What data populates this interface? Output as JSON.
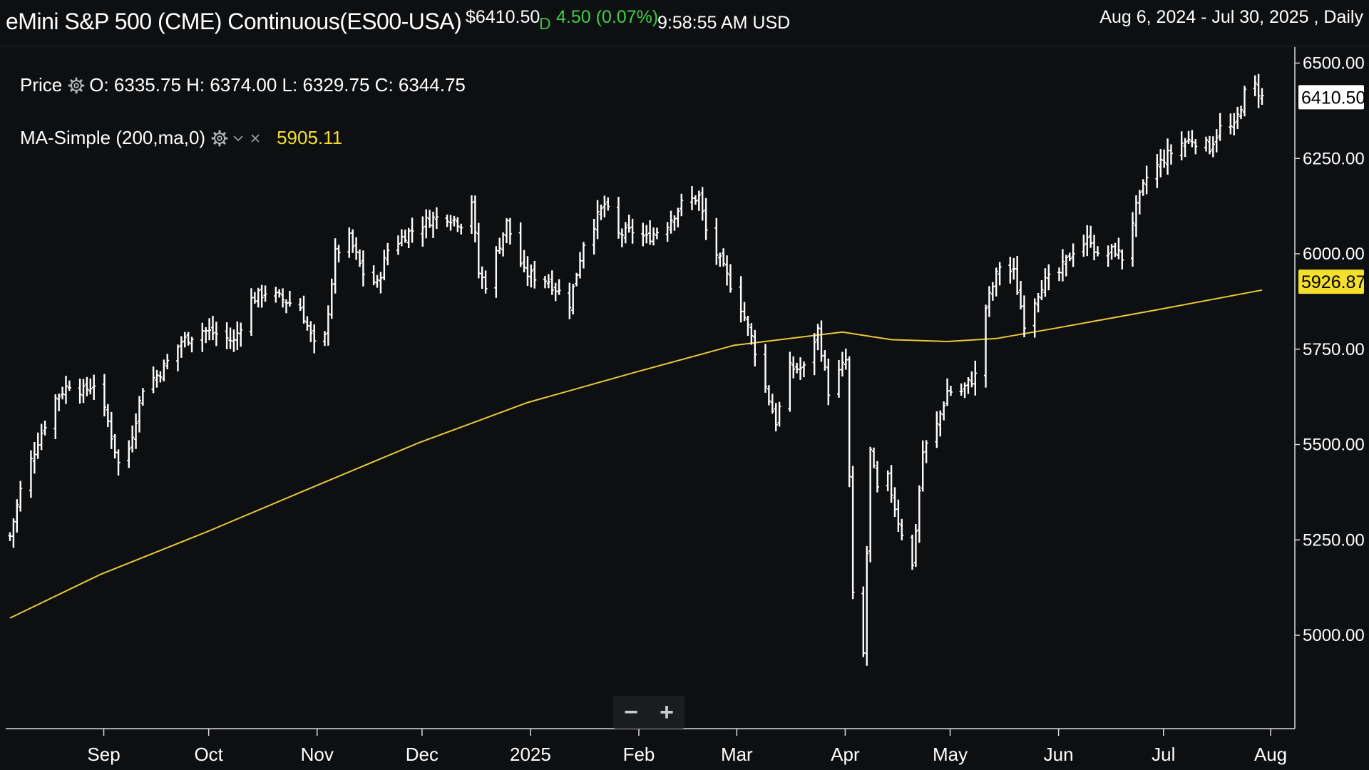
{
  "header": {
    "title": "eMini S&P 500 (CME) Continuous(ES00-USA)",
    "last_price": "$6410.50",
    "flag": "D",
    "change": "4.50 (0.07%)",
    "time": "9:58:55 AM USD",
    "date_range": "Aug 6, 2024 - Jul 30, 2025 , Daily"
  },
  "legend": {
    "price_label": "Price",
    "ohlc": "O: 6335.75 H: 6374.00 L: 6329.75 C: 6344.75",
    "ma_label": "MA-Simple (200,ma,0)",
    "ma_value": "5905.11",
    "icons": [
      "gear-icon",
      "chevron-down-icon",
      "close-icon"
    ]
  },
  "zoom": {
    "minus": "−",
    "plus": "+"
  },
  "colors": {
    "background": "#0e0f11",
    "bars": "#ffffff",
    "ma": "#e8c93a",
    "ma_tag": "#f5df2e",
    "up": "#3fcf46"
  },
  "chart_data": {
    "type": "ohlc",
    "title": "eMini S&P 500 (CME) Continuous(ES00-USA)",
    "x_range": [
      "2024-08-06",
      "2025-07-30"
    ],
    "ylim": [
      4800,
      6560
    ],
    "yticks": [
      "5000.00",
      "5250.00",
      "5500.00",
      "5750.00",
      "6000.00",
      "6250.00",
      "6500.00"
    ],
    "xticks": [
      "Sep",
      "Oct",
      "Nov",
      "Dec",
      "2025",
      "Feb",
      "Mar",
      "Apr",
      "May",
      "Jun",
      "Jul",
      "Aug"
    ],
    "price_tag": "6410.50",
    "ma_tag": "5926.87",
    "close_path": [
      [
        "2024-08-06",
        5260
      ],
      [
        "2024-08-09",
        5380
      ],
      [
        "2024-08-14",
        5510
      ],
      [
        "2024-08-19",
        5620
      ],
      [
        "2024-08-23",
        5660
      ],
      [
        "2024-08-27",
        5640
      ],
      [
        "2024-08-30",
        5660
      ],
      [
        "2024-09-03",
        5560
      ],
      [
        "2024-09-06",
        5450
      ],
      [
        "2024-09-09",
        5490
      ],
      [
        "2024-09-13",
        5650
      ],
      [
        "2024-09-18",
        5690
      ],
      [
        "2024-09-24",
        5770
      ],
      [
        "2024-09-30",
        5800
      ],
      [
        "2024-10-04",
        5790
      ],
      [
        "2024-10-09",
        5770
      ],
      [
        "2024-10-14",
        5880
      ],
      [
        "2024-10-18",
        5900
      ],
      [
        "2024-10-23",
        5880
      ],
      [
        "2024-10-28",
        5860
      ],
      [
        "2024-11-01",
        5760
      ],
      [
        "2024-11-04",
        5780
      ],
      [
        "2024-11-07",
        6000
      ],
      [
        "2024-11-11",
        6040
      ],
      [
        "2024-11-15",
        5950
      ],
      [
        "2024-11-19",
        5920
      ],
      [
        "2024-11-22",
        6010
      ],
      [
        "2024-11-27",
        6050
      ],
      [
        "2024-12-04",
        6090
      ],
      [
        "2024-12-09",
        6100
      ],
      [
        "2024-12-13",
        6080
      ],
      [
        "2024-12-16",
        6140
      ],
      [
        "2024-12-18",
        5950
      ],
      [
        "2024-12-20",
        5920
      ],
      [
        "2024-12-26",
        6080
      ],
      [
        "2024-12-31",
        5950
      ],
      [
        "2025-01-07",
        5930
      ],
      [
        "2025-01-13",
        5870
      ],
      [
        "2025-01-17",
        6030
      ],
      [
        "2025-01-23",
        6130
      ],
      [
        "2025-01-27",
        6050
      ],
      [
        "2025-01-31",
        6060
      ],
      [
        "2025-02-04",
        6040
      ],
      [
        "2025-02-10",
        6080
      ],
      [
        "2025-02-14",
        6130
      ],
      [
        "2025-02-19",
        6150
      ],
      [
        "2025-02-21",
        6060
      ],
      [
        "2025-02-26",
        5960
      ],
      [
        "2025-03-03",
        5860
      ],
      [
        "2025-03-06",
        5780
      ],
      [
        "2025-03-10",
        5650
      ],
      [
        "2025-03-13",
        5560
      ],
      [
        "2025-03-17",
        5700
      ],
      [
        "2025-03-21",
        5700
      ],
      [
        "2025-03-25",
        5800
      ],
      [
        "2025-03-28",
        5640
      ],
      [
        "2025-04-02",
        5720
      ],
      [
        "2025-04-04",
        5100
      ],
      [
        "2025-04-07",
        4950
      ],
      [
        "2025-04-09",
        5480
      ],
      [
        "2025-04-11",
        5380
      ],
      [
        "2025-04-14",
        5410
      ],
      [
        "2025-04-17",
        5300
      ],
      [
        "2025-04-21",
        5180
      ],
      [
        "2025-04-24",
        5480
      ],
      [
        "2025-04-28",
        5550
      ],
      [
        "2025-05-01",
        5640
      ],
      [
        "2025-05-05",
        5640
      ],
      [
        "2025-05-09",
        5680
      ],
      [
        "2025-05-12",
        5860
      ],
      [
        "2025-05-16",
        5970
      ],
      [
        "2025-05-20",
        5950
      ],
      [
        "2025-05-23",
        5820
      ],
      [
        "2025-05-28",
        5920
      ],
      [
        "2025-06-02",
        5950
      ],
      [
        "2025-06-06",
        6010
      ],
      [
        "2025-06-11",
        6040
      ],
      [
        "2025-06-13",
        5990
      ],
      [
        "2025-06-18",
        6010
      ],
      [
        "2025-06-20",
        5990
      ],
      [
        "2025-06-24",
        6120
      ],
      [
        "2025-06-27",
        6200
      ],
      [
        "2025-07-02",
        6250
      ],
      [
        "2025-07-07",
        6290
      ],
      [
        "2025-07-10",
        6300
      ],
      [
        "2025-07-15",
        6280
      ],
      [
        "2025-07-18",
        6330
      ],
      [
        "2025-07-22",
        6330
      ],
      [
        "2025-07-25",
        6420
      ],
      [
        "2025-07-28",
        6440
      ],
      [
        "2025-07-30",
        6410
      ]
    ],
    "ma_path": [
      [
        "2024-08-06",
        5045
      ],
      [
        "2024-09-01",
        5160
      ],
      [
        "2024-10-01",
        5270
      ],
      [
        "2024-11-01",
        5390
      ],
      [
        "2024-12-01",
        5505
      ],
      [
        "2025-01-01",
        5610
      ],
      [
        "2025-02-01",
        5690
      ],
      [
        "2025-03-01",
        5760
      ],
      [
        "2025-04-01",
        5795
      ],
      [
        "2025-04-15",
        5775
      ],
      [
        "2025-05-01",
        5770
      ],
      [
        "2025-05-15",
        5778
      ],
      [
        "2025-06-01",
        5805
      ],
      [
        "2025-07-01",
        5855
      ],
      [
        "2025-07-30",
        5905
      ]
    ]
  }
}
